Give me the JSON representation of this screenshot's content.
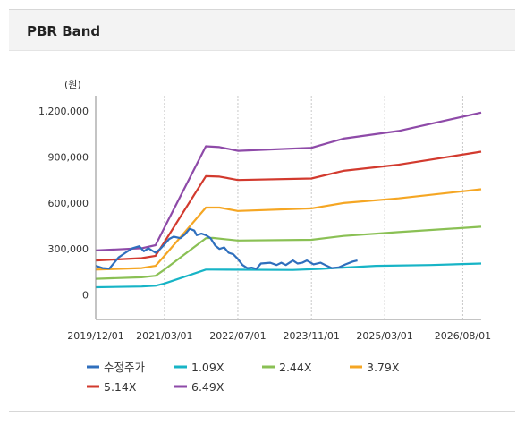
{
  "panel": {
    "title": "PBR Band"
  },
  "chart_data": {
    "type": "line",
    "title": "",
    "ylabel": "(원)",
    "xlabel": "",
    "x_ticks": [
      "2019/12/01",
      "2021/03/01",
      "2022/07/01",
      "2023/11/01",
      "2025/03/01",
      "2026/08/01"
    ],
    "xlim": [
      "2019/12/01",
      "2026/12/01"
    ],
    "y_ticks": [
      "1,200,000",
      "900,000",
      "600,000",
      "300,000",
      "0"
    ],
    "ylim": [
      -160000,
      1300000
    ],
    "grid": "vertical",
    "legend_position": "bottom",
    "series": [
      {
        "name": "수정주가",
        "color": "#2f6fbd",
        "points": [
          [
            "2019/12/01",
            190000
          ],
          [
            "2020/01/15",
            175000
          ],
          [
            "2020/03/01",
            172000
          ],
          [
            "2020/05/01",
            245000
          ],
          [
            "2020/06/15",
            275000
          ],
          [
            "2020/08/01",
            305000
          ],
          [
            "2020/09/15",
            318000
          ],
          [
            "2020/10/15",
            285000
          ],
          [
            "2020/11/15",
            305000
          ],
          [
            "2021/01/01",
            275000
          ],
          [
            "2021/02/01",
            300000
          ],
          [
            "2021/03/01",
            330000
          ],
          [
            "2021/04/01",
            365000
          ],
          [
            "2021/05/01",
            380000
          ],
          [
            "2021/06/15",
            370000
          ],
          [
            "2021/07/15",
            395000
          ],
          [
            "2021/08/15",
            432000
          ],
          [
            "2021/09/15",
            420000
          ],
          [
            "2021/10/01",
            390000
          ],
          [
            "2021/11/01",
            400000
          ],
          [
            "2021/12/01",
            390000
          ],
          [
            "2022/01/01",
            370000
          ],
          [
            "2022/02/01",
            322000
          ],
          [
            "2022/03/01",
            300000
          ],
          [
            "2022/04/01",
            310000
          ],
          [
            "2022/05/01",
            275000
          ],
          [
            "2022/06/01",
            265000
          ],
          [
            "2022/07/01",
            235000
          ],
          [
            "2022/08/01",
            195000
          ],
          [
            "2022/09/01",
            175000
          ],
          [
            "2022/10/01",
            178000
          ],
          [
            "2022/11/01",
            170000
          ],
          [
            "2022/12/01",
            205000
          ],
          [
            "2023/02/01",
            210000
          ],
          [
            "2023/03/15",
            195000
          ],
          [
            "2023/04/15",
            210000
          ],
          [
            "2023/05/15",
            195000
          ],
          [
            "2023/07/01",
            225000
          ],
          [
            "2023/08/01",
            205000
          ],
          [
            "2023/09/01",
            210000
          ],
          [
            "2023/10/01",
            225000
          ],
          [
            "2023/11/15",
            200000
          ],
          [
            "2024/01/01",
            210000
          ],
          [
            "2024/02/01",
            195000
          ],
          [
            "2024/03/15",
            175000
          ],
          [
            "2024/05/01",
            180000
          ],
          [
            "2024/06/15",
            200000
          ],
          [
            "2024/08/01",
            218000
          ],
          [
            "2024/09/01",
            225000
          ]
        ]
      },
      {
        "name": "1.09X",
        "color": "#17b4c6",
        "points": [
          [
            "2019/12/01",
            50000
          ],
          [
            "2020/10/01",
            55000
          ],
          [
            "2021/01/01",
            60000
          ],
          [
            "2021/03/01",
            75000
          ],
          [
            "2021/12/01",
            165000
          ],
          [
            "2022/01/15",
            165000
          ],
          [
            "2023/07/01",
            163000
          ],
          [
            "2024/01/01",
            170000
          ],
          [
            "2025/01/01",
            190000
          ],
          [
            "2026/01/01",
            195000
          ],
          [
            "2026/12/01",
            205000
          ]
        ]
      },
      {
        "name": "2.44X",
        "color": "#8ac054",
        "points": [
          [
            "2019/12/01",
            105000
          ],
          [
            "2020/10/01",
            115000
          ],
          [
            "2021/01/01",
            125000
          ],
          [
            "2021/03/01",
            165000
          ],
          [
            "2021/12/01",
            370000
          ],
          [
            "2022/01/15",
            372000
          ],
          [
            "2022/07/01",
            355000
          ],
          [
            "2023/11/01",
            360000
          ],
          [
            "2024/06/01",
            385000
          ],
          [
            "2025/06/01",
            410000
          ],
          [
            "2026/12/01",
            445000
          ]
        ]
      },
      {
        "name": "3.79X",
        "color": "#f5a623",
        "points": [
          [
            "2019/12/01",
            165000
          ],
          [
            "2020/10/01",
            175000
          ],
          [
            "2021/01/01",
            190000
          ],
          [
            "2021/03/01",
            255000
          ],
          [
            "2021/12/01",
            570000
          ],
          [
            "2022/03/01",
            570000
          ],
          [
            "2022/07/01",
            548000
          ],
          [
            "2023/11/01",
            565000
          ],
          [
            "2024/06/01",
            600000
          ],
          [
            "2025/06/01",
            630000
          ],
          [
            "2026/12/01",
            690000
          ]
        ]
      },
      {
        "name": "5.14X",
        "color": "#d23a2e",
        "points": [
          [
            "2019/12/01",
            225000
          ],
          [
            "2020/10/01",
            240000
          ],
          [
            "2021/01/01",
            255000
          ],
          [
            "2021/03/01",
            345000
          ],
          [
            "2021/12/01",
            775000
          ],
          [
            "2022/03/01",
            772000
          ],
          [
            "2022/07/01",
            750000
          ],
          [
            "2023/11/01",
            760000
          ],
          [
            "2024/06/01",
            810000
          ],
          [
            "2025/06/01",
            850000
          ],
          [
            "2026/12/01",
            935000
          ]
        ]
      },
      {
        "name": "6.49X",
        "color": "#8e4aa8",
        "points": [
          [
            "2019/12/01",
            290000
          ],
          [
            "2020/10/01",
            305000
          ],
          [
            "2021/01/01",
            325000
          ],
          [
            "2021/03/01",
            440000
          ],
          [
            "2021/12/01",
            970000
          ],
          [
            "2022/03/01",
            965000
          ],
          [
            "2022/07/01",
            940000
          ],
          [
            "2023/11/01",
            960000
          ],
          [
            "2024/06/01",
            1020000
          ],
          [
            "2025/06/01",
            1070000
          ],
          [
            "2026/12/01",
            1190000
          ]
        ]
      }
    ]
  }
}
